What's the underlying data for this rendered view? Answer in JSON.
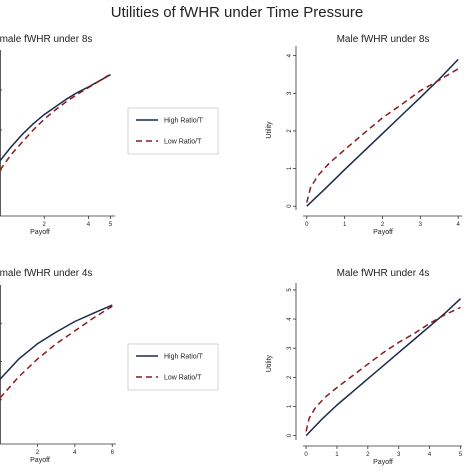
{
  "figure": {
    "title": "Utilities of fWHR under Time Pressure"
  },
  "legend": {
    "items": [
      {
        "label": "High Ratio/T",
        "color": "#1a2a4a",
        "dash": "solid"
      },
      {
        "label": "Low Ratio/T",
        "color": "#8b1a1a",
        "dash": "dashed"
      }
    ]
  },
  "chart_data": [
    {
      "type": "line",
      "title": "male fWHR under 8s",
      "xlabel": "Payoff",
      "ylabel": "",
      "x_ticks": [
        2,
        4,
        5
      ],
      "xlim": [
        0,
        5.2
      ],
      "ylim": [
        0,
        5.2
      ],
      "series": [
        {
          "name": "High Ratio/T",
          "x": [
            0,
            0.5,
            1,
            1.5,
            2,
            2.5,
            3,
            3.5,
            4,
            4.5,
            5
          ],
          "y": [
            1.6,
            2.05,
            2.45,
            2.8,
            3.1,
            3.35,
            3.6,
            3.82,
            4.0,
            4.2,
            4.4
          ]
        },
        {
          "name": "Low Ratio/T",
          "x": [
            0,
            0.5,
            1,
            1.5,
            2,
            2.5,
            3,
            3.5,
            4,
            4.5,
            5
          ],
          "y": [
            1.3,
            1.8,
            2.2,
            2.6,
            2.95,
            3.25,
            3.52,
            3.76,
            3.98,
            4.2,
            4.42
          ]
        }
      ]
    },
    {
      "type": "line",
      "title": "Male fWHR under 8s",
      "xlabel": "Payoff",
      "ylabel": "Utility",
      "x_ticks": [
        0,
        1,
        2,
        3,
        4
      ],
      "y_ticks": [
        0,
        1,
        2,
        3,
        4
      ],
      "xlim": [
        -0.1,
        4.1
      ],
      "ylim": [
        -0.1,
        4.15
      ],
      "series": [
        {
          "name": "High Ratio/T",
          "x": [
            0,
            0.5,
            1,
            1.5,
            2,
            2.5,
            3,
            3.5,
            4
          ],
          "y": [
            0,
            0.48,
            0.97,
            1.45,
            1.93,
            2.41,
            2.89,
            3.38,
            3.9
          ]
        },
        {
          "name": "Low Ratio/T",
          "x": [
            0,
            0.1,
            0.3,
            0.6,
            1,
            1.5,
            2,
            2.5,
            3,
            3.5,
            4
          ],
          "y": [
            0.1,
            0.5,
            0.82,
            1.15,
            1.5,
            1.93,
            2.35,
            2.7,
            3.07,
            3.35,
            3.65
          ]
        }
      ]
    },
    {
      "type": "line",
      "title": "male fWHR under 4s",
      "xlabel": "Payoff",
      "ylabel": "",
      "x_ticks": [
        2,
        4,
        6
      ],
      "xlim": [
        0,
        6.2
      ],
      "ylim": [
        0,
        6.5
      ],
      "series": [
        {
          "name": "High Ratio/T",
          "x": [
            0,
            1,
            2,
            3,
            4,
            5,
            6
          ],
          "y": [
            2.5,
            3.35,
            4.0,
            4.5,
            4.95,
            5.3,
            5.65
          ]
        },
        {
          "name": "Low Ratio/T",
          "x": [
            0,
            1,
            2,
            3,
            4,
            5,
            6
          ],
          "y": [
            1.7,
            2.6,
            3.35,
            4.0,
            4.55,
            5.1,
            5.6
          ]
        }
      ]
    },
    {
      "type": "line",
      "title": "Male fWHR under 4s",
      "xlabel": "Payoff",
      "ylabel": "Utility",
      "x_ticks": [
        0,
        1,
        2,
        3,
        4,
        5
      ],
      "y_ticks": [
        0,
        1,
        2,
        3,
        4,
        5
      ],
      "xlim": [
        -0.1,
        5.05
      ],
      "ylim": [
        -0.15,
        5.1
      ],
      "series": [
        {
          "name": "High Ratio/T",
          "x": [
            0,
            0.5,
            1,
            1.5,
            2,
            2.5,
            3,
            3.5,
            4,
            4.5,
            5
          ],
          "y": [
            0,
            0.55,
            1.05,
            1.5,
            1.95,
            2.4,
            2.85,
            3.3,
            3.75,
            4.2,
            4.7
          ]
        },
        {
          "name": "Low Ratio/T",
          "x": [
            0,
            0.1,
            0.3,
            0.6,
            1,
            1.5,
            2,
            2.5,
            3,
            3.5,
            4,
            4.5,
            5
          ],
          "y": [
            0.15,
            0.6,
            0.95,
            1.3,
            1.65,
            2.05,
            2.45,
            2.85,
            3.2,
            3.5,
            3.85,
            4.15,
            4.4
          ]
        }
      ]
    }
  ]
}
